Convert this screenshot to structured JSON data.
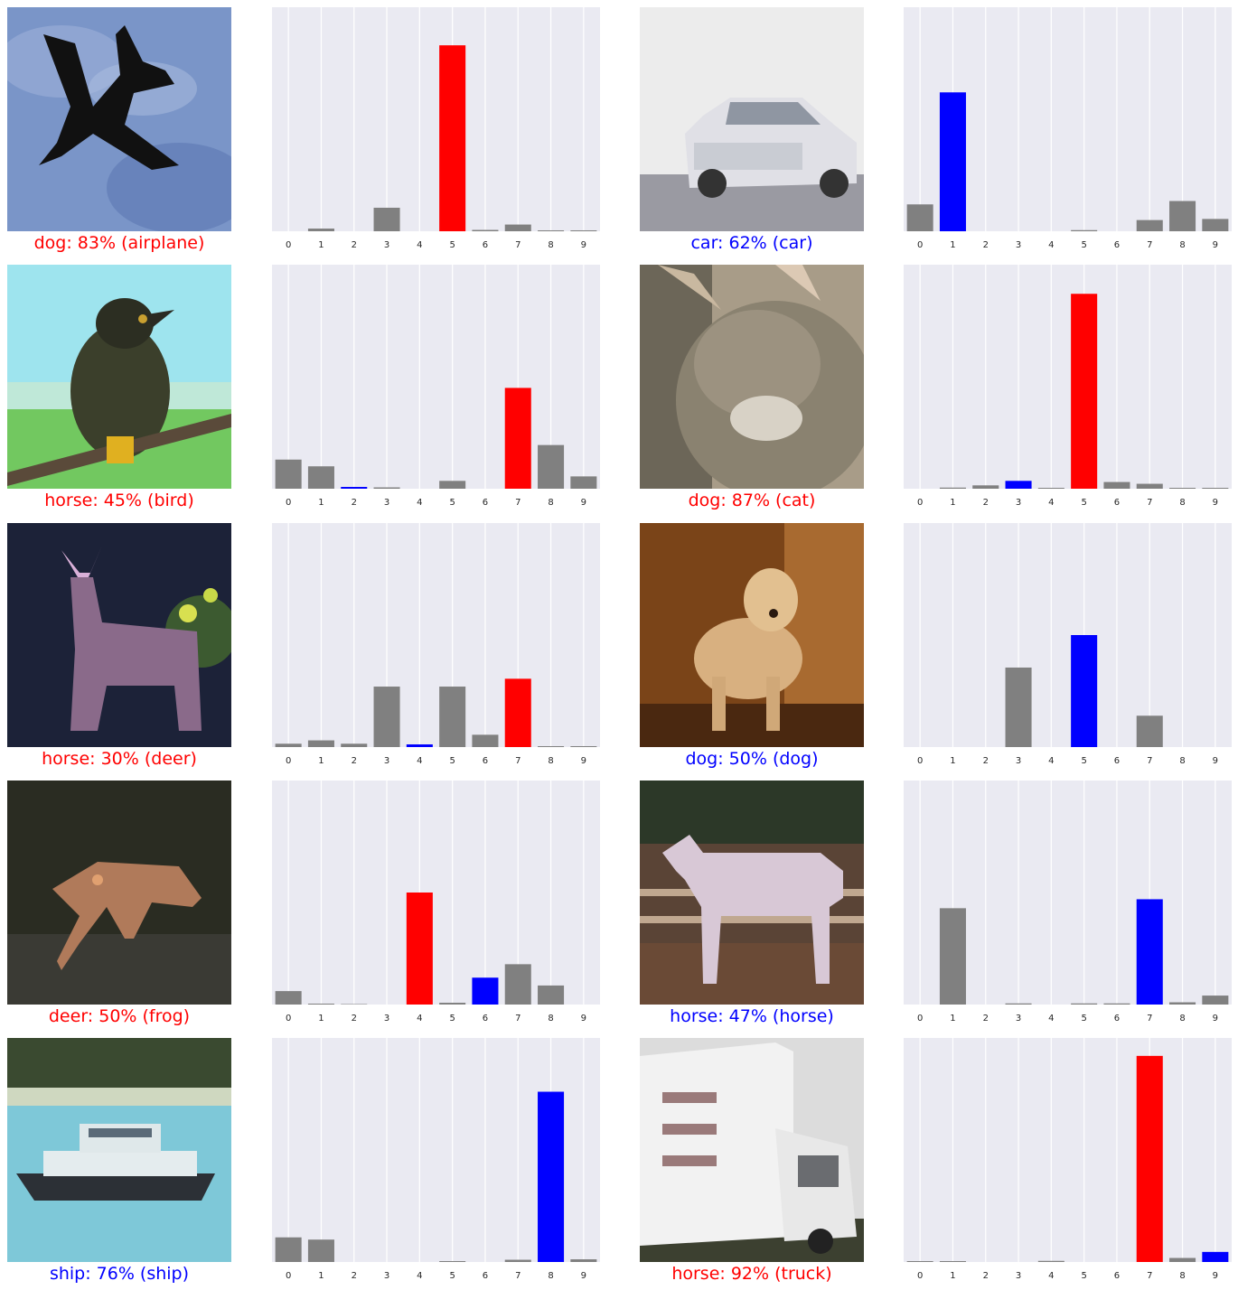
{
  "colors": {
    "correct": "#0000ff",
    "wrong": "#ff0000",
    "other": "#808080",
    "plot_bg": "#eaeaf2",
    "grid": "#ffffff"
  },
  "chart_data": [
    {
      "type": "bar",
      "image": "airplane silhouette against blue sky",
      "caption": "dog: 83% (airplane)",
      "caption_color": "wrong",
      "categories": [
        "0",
        "1",
        "2",
        "3",
        "4",
        "5",
        "6",
        "7",
        "8",
        "9"
      ],
      "values": [
        0.0,
        0.012,
        0.0,
        0.105,
        0.0,
        0.83,
        0.006,
        0.03,
        0.004,
        0.004
      ],
      "bar_colors": [
        "other",
        "other",
        "other",
        "other",
        "other",
        "wrong",
        "other",
        "other",
        "other",
        "other"
      ],
      "ylim": [
        0,
        1
      ],
      "grid": true
    },
    {
      "type": "bar",
      "image": "white car",
      "caption": "car: 62% (car)",
      "caption_color": "correct",
      "categories": [
        "0",
        "1",
        "2",
        "3",
        "4",
        "5",
        "6",
        "7",
        "8",
        "9"
      ],
      "values": [
        0.12,
        0.62,
        0.0,
        0.0,
        0.0,
        0.005,
        0.0,
        0.05,
        0.135,
        0.055
      ],
      "bar_colors": [
        "other",
        "correct",
        "other",
        "other",
        "other",
        "other",
        "other",
        "other",
        "other",
        "other"
      ],
      "ylim": [
        0,
        1
      ],
      "grid": true
    },
    {
      "type": "bar",
      "image": "bird on a branch",
      "caption": "horse: 45% (bird)",
      "caption_color": "wrong",
      "categories": [
        "0",
        "1",
        "2",
        "3",
        "4",
        "5",
        "6",
        "7",
        "8",
        "9"
      ],
      "values": [
        0.13,
        0.1,
        0.008,
        0.006,
        0.0,
        0.035,
        0.0,
        0.45,
        0.195,
        0.055
      ],
      "bar_colors": [
        "other",
        "other",
        "correct",
        "other",
        "other",
        "other",
        "other",
        "wrong",
        "other",
        "other"
      ],
      "ylim": [
        0,
        1
      ],
      "grid": true
    },
    {
      "type": "bar",
      "image": "cat close-up",
      "caption": "dog: 87% (cat)",
      "caption_color": "wrong",
      "categories": [
        "0",
        "1",
        "2",
        "3",
        "4",
        "5",
        "6",
        "7",
        "8",
        "9"
      ],
      "values": [
        0.0,
        0.005,
        0.015,
        0.035,
        0.004,
        0.87,
        0.03,
        0.022,
        0.004,
        0.004
      ],
      "bar_colors": [
        "other",
        "other",
        "other",
        "correct",
        "other",
        "wrong",
        "other",
        "other",
        "other",
        "other"
      ],
      "ylim": [
        0,
        1
      ],
      "grid": true
    },
    {
      "type": "bar",
      "image": "deer in the dark",
      "caption": "horse: 30% (deer)",
      "caption_color": "wrong",
      "categories": [
        "0",
        "1",
        "2",
        "3",
        "4",
        "5",
        "6",
        "7",
        "8",
        "9"
      ],
      "values": [
        0.015,
        0.03,
        0.015,
        0.27,
        0.012,
        0.27,
        0.055,
        0.305,
        0.004,
        0.004
      ],
      "bar_colors": [
        "other",
        "other",
        "other",
        "other",
        "correct",
        "other",
        "other",
        "wrong",
        "other",
        "other"
      ],
      "ylim": [
        0,
        1
      ],
      "grid": true
    },
    {
      "type": "bar",
      "image": "dog standing in a room",
      "caption": "dog: 50% (dog)",
      "caption_color": "correct",
      "categories": [
        "0",
        "1",
        "2",
        "3",
        "4",
        "5",
        "6",
        "7",
        "8",
        "9"
      ],
      "values": [
        0.0,
        0.0,
        0.0,
        0.355,
        0.0,
        0.5,
        0.0,
        0.14,
        0.0,
        0.0
      ],
      "bar_colors": [
        "other",
        "other",
        "other",
        "other",
        "other",
        "correct",
        "other",
        "other",
        "other",
        "other"
      ],
      "ylim": [
        0,
        1
      ],
      "grid": true
    },
    {
      "type": "bar",
      "image": "frog on the ground",
      "caption": "deer: 50% (frog)",
      "caption_color": "wrong",
      "categories": [
        "0",
        "1",
        "2",
        "3",
        "4",
        "5",
        "6",
        "7",
        "8",
        "9"
      ],
      "values": [
        0.06,
        0.004,
        0.002,
        0.0,
        0.5,
        0.008,
        0.12,
        0.18,
        0.085,
        0.0
      ],
      "bar_colors": [
        "other",
        "other",
        "other",
        "other",
        "wrong",
        "other",
        "correct",
        "other",
        "other",
        "other"
      ],
      "ylim": [
        0,
        1
      ],
      "grid": true
    },
    {
      "type": "bar",
      "image": "white horse by a fence",
      "caption": "horse: 47% (horse)",
      "caption_color": "correct",
      "categories": [
        "0",
        "1",
        "2",
        "3",
        "4",
        "5",
        "6",
        "7",
        "8",
        "9"
      ],
      "values": [
        0.0,
        0.43,
        0.0,
        0.005,
        0.0,
        0.005,
        0.005,
        0.47,
        0.01,
        0.04
      ],
      "bar_colors": [
        "other",
        "other",
        "other",
        "other",
        "other",
        "other",
        "other",
        "correct",
        "other",
        "other"
      ],
      "ylim": [
        0,
        1
      ],
      "grid": true
    },
    {
      "type": "bar",
      "image": "small boat on water",
      "caption": "ship: 76% (ship)",
      "caption_color": "correct",
      "categories": [
        "0",
        "1",
        "2",
        "3",
        "4",
        "5",
        "6",
        "7",
        "8",
        "9"
      ],
      "values": [
        0.11,
        0.1,
        0.0,
        0.0,
        0.0,
        0.004,
        0.0,
        0.01,
        0.76,
        0.012
      ],
      "bar_colors": [
        "other",
        "other",
        "other",
        "other",
        "other",
        "other",
        "other",
        "other",
        "correct",
        "other"
      ],
      "ylim": [
        0,
        1
      ],
      "grid": true
    },
    {
      "type": "bar",
      "image": "white box truck",
      "caption": "horse: 92% (truck)",
      "caption_color": "wrong",
      "categories": [
        "0",
        "1",
        "2",
        "3",
        "4",
        "5",
        "6",
        "7",
        "8",
        "9"
      ],
      "values": [
        0.004,
        0.004,
        0.0,
        0.0,
        0.005,
        0.0,
        0.0,
        0.92,
        0.018,
        0.045
      ],
      "bar_colors": [
        "other",
        "other",
        "other",
        "other",
        "other",
        "other",
        "other",
        "wrong",
        "other",
        "correct"
      ],
      "ylim": [
        0,
        1
      ],
      "grid": true
    }
  ]
}
